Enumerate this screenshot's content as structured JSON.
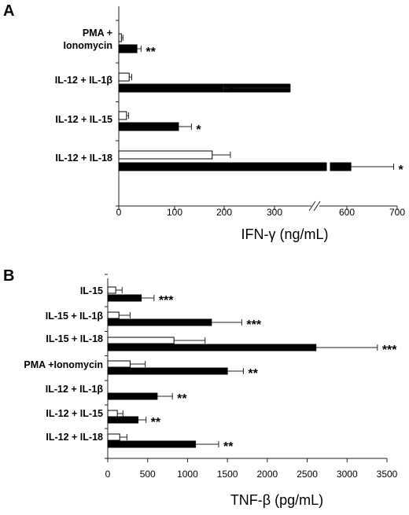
{
  "chart_data": [
    {
      "type": "bar",
      "panel": "A",
      "orientation": "horizontal",
      "xlabel": "IFN-γ (ng/mL)",
      "xlim": [
        0,
        700
      ],
      "x_axis_break": [
        350,
        550
      ],
      "xticks": [
        "0",
        "100",
        "200",
        "300",
        "600",
        "700"
      ],
      "categories": [
        {
          "label_lines": [
            "PMA +",
            "Ionomycin"
          ]
        },
        {
          "label_lines": [
            "IL-12 + IL-1β"
          ]
        },
        {
          "label_lines": [
            "IL-12 + IL-15"
          ]
        },
        {
          "label_lines": [
            "IL-12 + IL-18"
          ]
        }
      ],
      "series": [
        {
          "fill": "white",
          "values": [
            5,
            20,
            15,
            180
          ],
          "errors": [
            3,
            5,
            4,
            35
          ]
        },
        {
          "fill": "black",
          "values": [
            35,
            330,
            115,
            608
          ],
          "errors": [
            8,
            25,
            25,
            85
          ]
        }
      ],
      "significance": [
        "**",
        "*",
        "*",
        "*"
      ]
    },
    {
      "type": "bar",
      "panel": "B",
      "orientation": "horizontal",
      "xlabel": "TNF-β (pg/mL)",
      "xlim": [
        0,
        3500
      ],
      "xticks": [
        "0",
        "500",
        "1000",
        "1500",
        "2000",
        "2500",
        "3000",
        "3500"
      ],
      "categories": [
        {
          "label_lines": [
            "IL-15"
          ]
        },
        {
          "label_lines": [
            "IL-15 + IL-1β"
          ]
        },
        {
          "label_lines": [
            "IL-15 + IL-18"
          ]
        },
        {
          "label_lines": [
            "PMA +Ionomycin"
          ]
        },
        {
          "label_lines": [
            "IL-12 + IL-1β"
          ]
        },
        {
          "label_lines": [
            "IL-12 + IL-15"
          ]
        },
        {
          "label_lines": [
            "IL-12 + IL-18"
          ]
        }
      ],
      "series": [
        {
          "fill": "white",
          "values": [
            100,
            140,
            830,
            280,
            0,
            120,
            150
          ],
          "errors": [
            80,
            140,
            390,
            190,
            0,
            70,
            90
          ]
        },
        {
          "fill": "black",
          "values": [
            420,
            1300,
            2610,
            1500,
            620,
            380,
            1100
          ],
          "errors": [
            160,
            380,
            770,
            200,
            190,
            100,
            290
          ]
        }
      ],
      "significance": [
        "***",
        "***",
        "***",
        "**",
        "**",
        "**",
        "**"
      ]
    }
  ]
}
